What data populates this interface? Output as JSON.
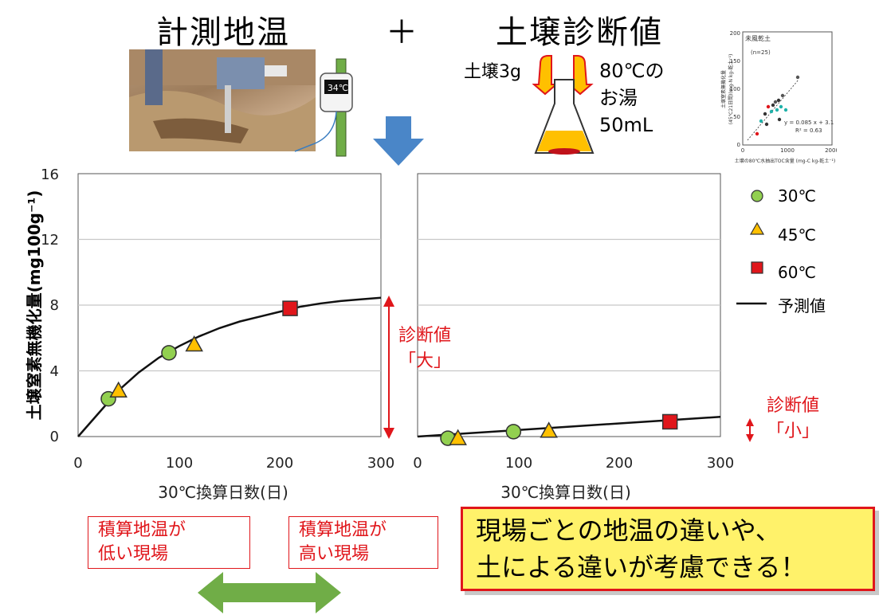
{
  "header": {
    "title_left": "計測地温",
    "plus": "＋",
    "title_right": "土壌診断値"
  },
  "thermometer": {
    "reading": "34℃"
  },
  "flask": {
    "soil_label": "土壌3g",
    "water_line1": "80℃の",
    "water_line2": "お湯",
    "water_line3": "50mL"
  },
  "inset": {
    "label_soil": "未風乾土",
    "label_n": "(n=25)",
    "equation": "y = 0.085 x + 3.1",
    "r2": "R² = 0.63",
    "ylabel_line1": "土壌窒素無機化量",
    "ylabel_line2": "(45℃21日間)(mg-N kg-乾土⁻¹)",
    "xlabel": "土壌の80℃水抽出TOC含量 (mg-C kg-乾土⁻¹)",
    "y_ticks": [
      "0",
      "50",
      "100",
      "150",
      "200"
    ],
    "x_ticks": [
      "0",
      "1000",
      "2000"
    ]
  },
  "main": {
    "ylabel": "土壌窒素無機化量(mg100g⁻¹)",
    "xlabel_left": "30℃換算日数(日)",
    "xlabel_right": "30℃換算日数(日)",
    "diag_large_1": "診断値",
    "diag_large_2": "「大」",
    "diag_small_1": "診断値",
    "diag_small_2": "「小」"
  },
  "legend": {
    "item_30": "30℃",
    "item_45": "45℃",
    "item_60": "60℃",
    "item_pred": "予測値"
  },
  "bottom": {
    "low_line1": "積算地温が",
    "low_line2": "低い現場",
    "high_line1": "積算地温が",
    "high_line2": "高い現場",
    "msg_line1": "現場ごとの地温の違いや、",
    "msg_line2": "土による違いが考慮できる！"
  },
  "colors": {
    "c30": "#92d050",
    "c45": "#ffc000",
    "c60": "#e0161b",
    "arrow_blue": "#4a86c8",
    "arrow_green": "#70ad47",
    "accent_red": "#e0161b"
  },
  "chart_data": [
    {
      "type": "scatter",
      "ylim": [
        0,
        16
      ],
      "xlim": [
        0,
        300
      ],
      "y_ticks": [
        "0",
        "4",
        "8",
        "12",
        "16"
      ],
      "x_ticks": [
        "0",
        "100",
        "200",
        "300"
      ],
      "series": [
        {
          "name": "30℃",
          "marker": "circle",
          "points": [
            [
              30,
              2.3
            ],
            [
              90,
              5.1
            ]
          ]
        },
        {
          "name": "45℃",
          "marker": "triangle",
          "points": [
            [
              40,
              2.8
            ],
            [
              115,
              5.6
            ]
          ]
        },
        {
          "name": "60℃",
          "marker": "square",
          "points": [
            [
              210,
              7.8
            ]
          ]
        },
        {
          "name": "予測値",
          "marker": "line",
          "points": [
            [
              0,
              0
            ],
            [
              20,
              1.4
            ],
            [
              40,
              2.8
            ],
            [
              60,
              3.9
            ],
            [
              80,
              4.8
            ],
            [
              100,
              5.5
            ],
            [
              120,
              6.1
            ],
            [
              140,
              6.6
            ],
            [
              160,
              7.0
            ],
            [
              180,
              7.3
            ],
            [
              200,
              7.6
            ],
            [
              220,
              7.9
            ],
            [
              240,
              8.1
            ],
            [
              260,
              8.25
            ],
            [
              280,
              8.35
            ],
            [
              300,
              8.45
            ]
          ]
        }
      ]
    },
    {
      "type": "scatter",
      "ylim": [
        0,
        16
      ],
      "xlim": [
        0,
        300
      ],
      "x_ticks": [
        "0",
        "100",
        "200",
        "300"
      ],
      "series": [
        {
          "name": "30℃",
          "marker": "circle",
          "points": [
            [
              30,
              -0.1
            ],
            [
              95,
              0.3
            ]
          ]
        },
        {
          "name": "45℃",
          "marker": "triangle",
          "points": [
            [
              40,
              -0.1
            ],
            [
              130,
              0.35
            ]
          ]
        },
        {
          "name": "60℃",
          "marker": "square",
          "points": [
            [
              250,
              0.9
            ]
          ]
        },
        {
          "name": "予測値",
          "marker": "line",
          "points": [
            [
              0,
              0
            ],
            [
              50,
              0.2
            ],
            [
              100,
              0.4
            ],
            [
              150,
              0.6
            ],
            [
              200,
              0.8
            ],
            [
              250,
              1.0
            ],
            [
              300,
              1.2
            ]
          ]
        }
      ]
    }
  ]
}
